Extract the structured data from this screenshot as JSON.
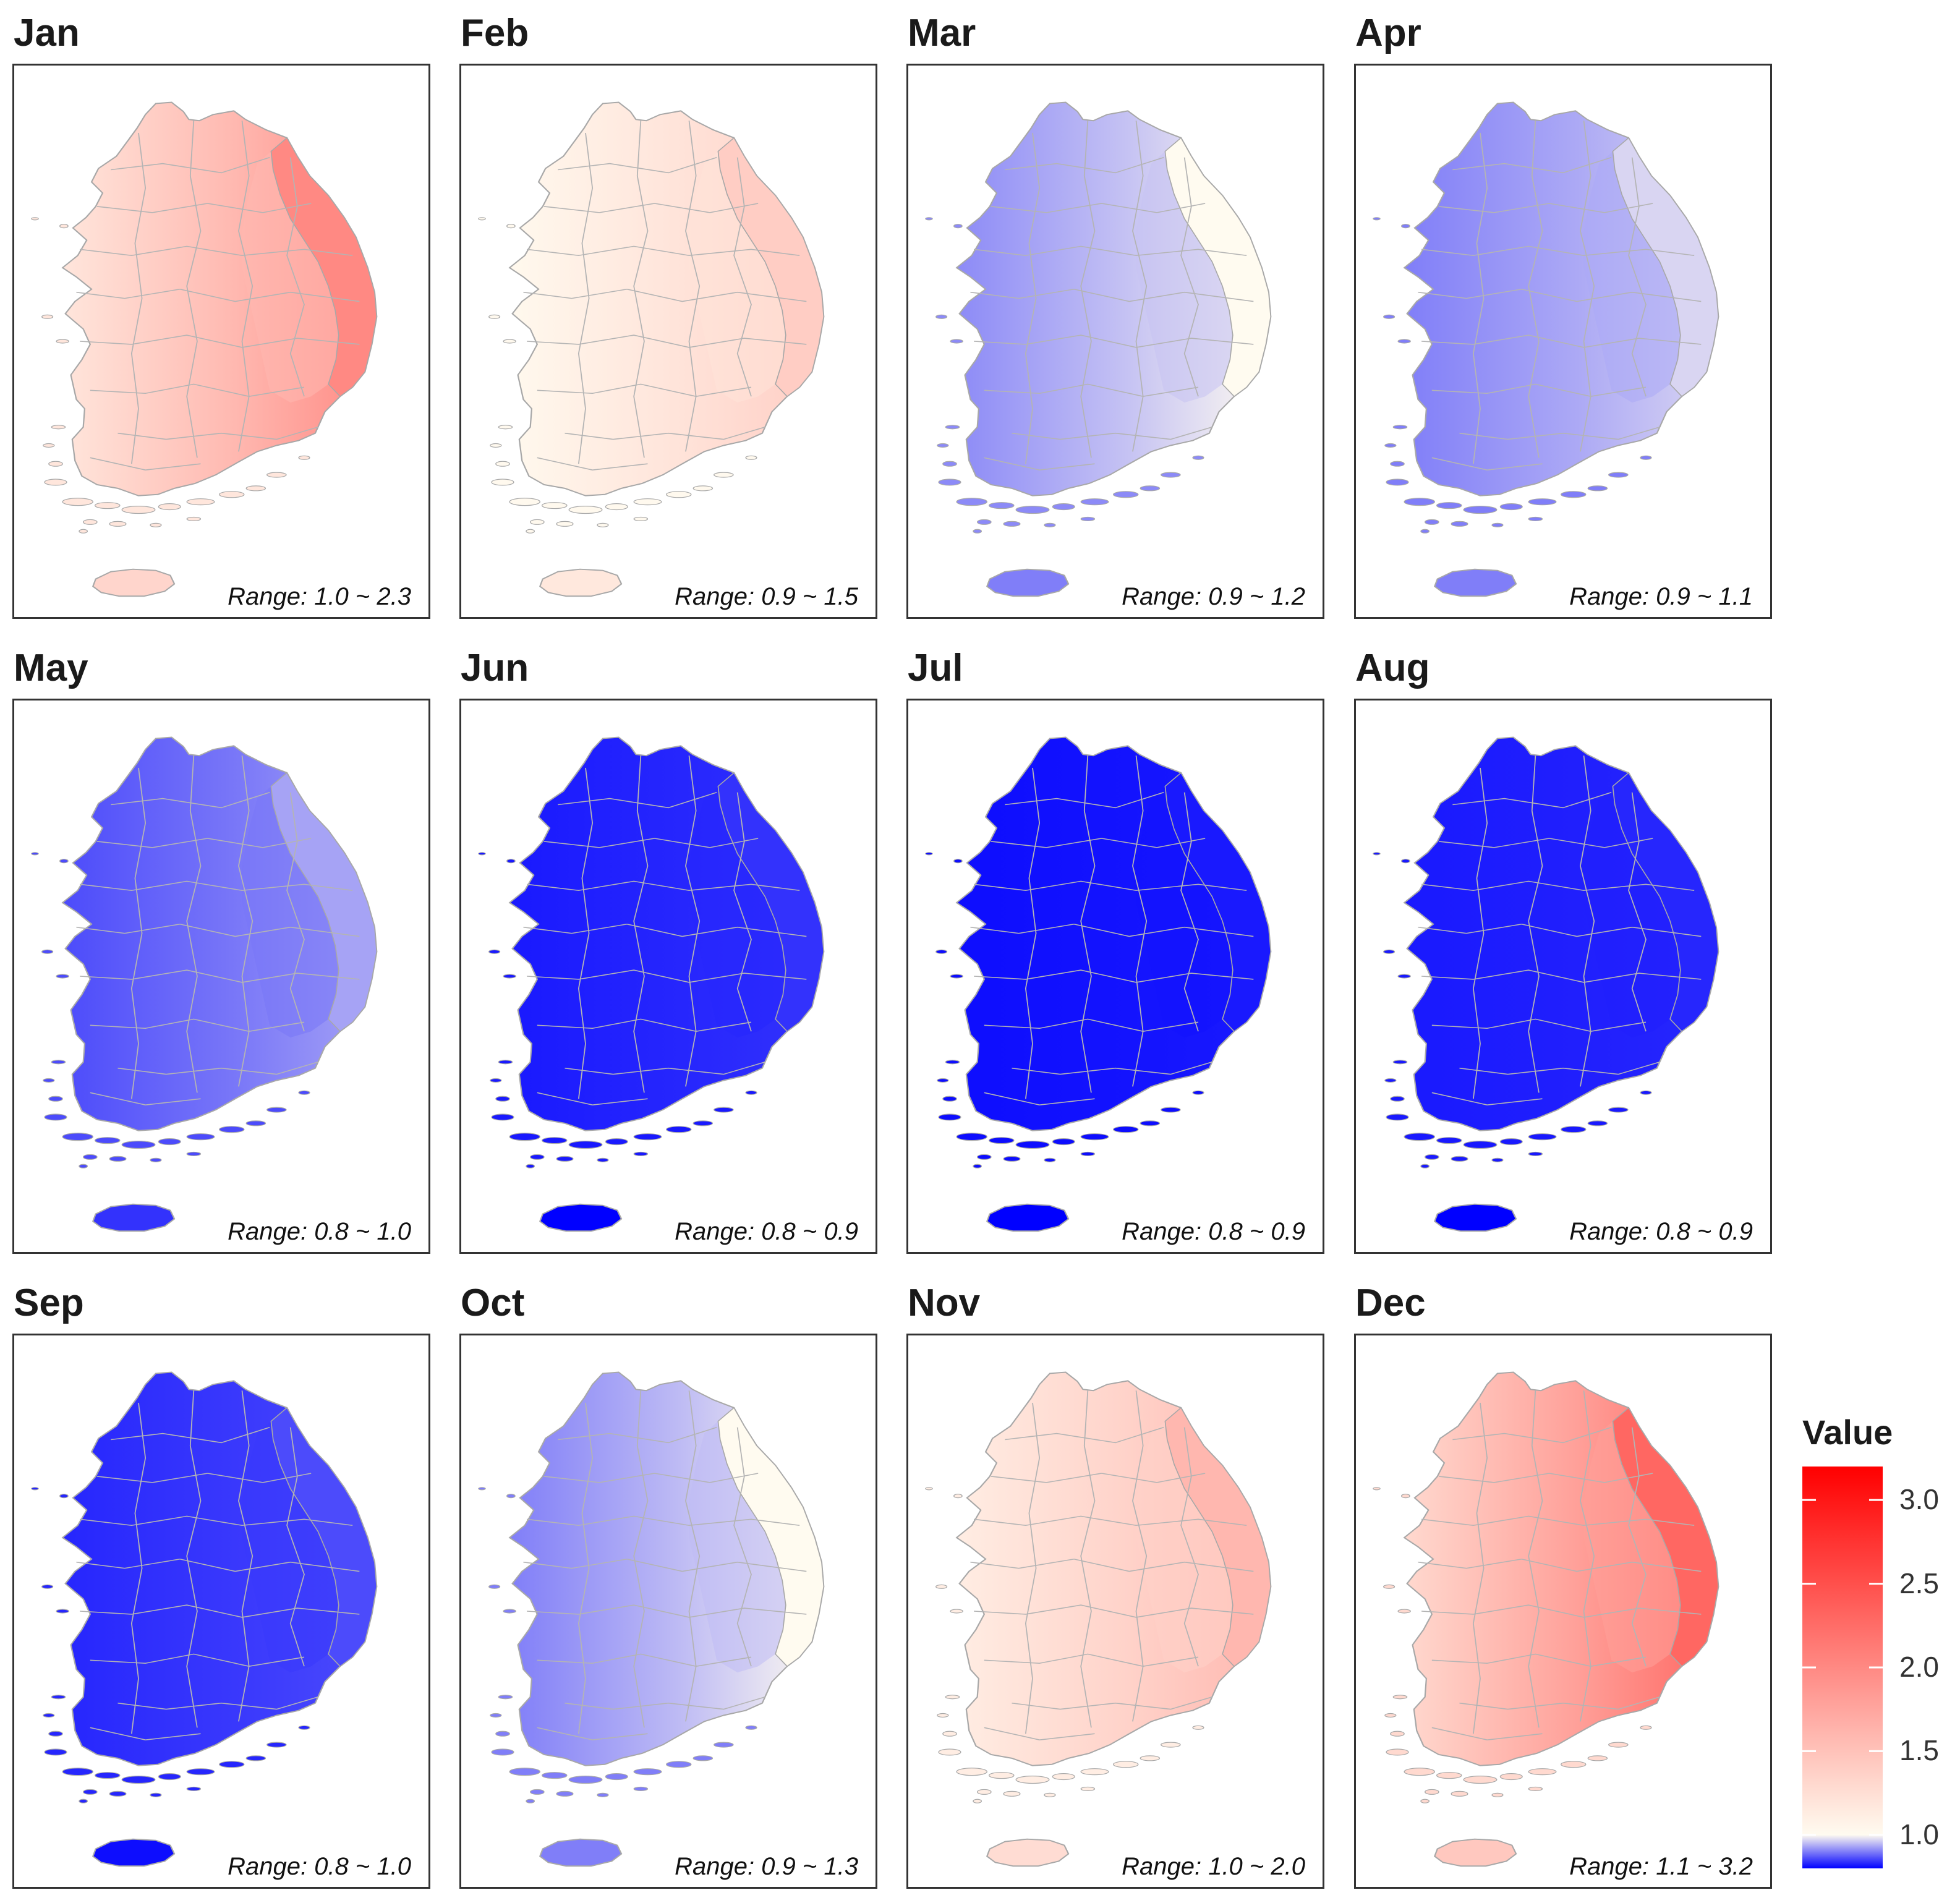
{
  "chart_data": {
    "type": "choropleth-map-grid",
    "legend": {
      "title": "Value",
      "ticks": [
        "3.0",
        "2.5",
        "2.0",
        "1.5",
        "1.0"
      ],
      "tick_values": [
        3.0,
        2.5,
        2.0,
        1.5,
        1.0
      ],
      "min": 0.8,
      "max": 3.2,
      "colors": {
        "low": "#0000ff",
        "mid": "#fffbf0",
        "high": "#ff0000"
      }
    },
    "panels": [
      {
        "month": "Jan",
        "range_text": "Range: 1.0 ~ 2.3",
        "min": 1.0,
        "max": 2.3,
        "value_w": 1.18,
        "value_e": 2.0
      },
      {
        "month": "Feb",
        "range_text": "Range: 0.9 ~ 1.5",
        "min": 0.9,
        "max": 1.5,
        "value_w": 1.02,
        "value_e": 1.4
      },
      {
        "month": "Mar",
        "range_text": "Range: 0.9 ~ 1.2",
        "min": 0.9,
        "max": 1.2,
        "value_w": 0.91,
        "value_e": 1.0
      },
      {
        "month": "Apr",
        "range_text": "Range: 0.9 ~ 1.1",
        "min": 0.9,
        "max": 1.1,
        "value_w": 0.9,
        "value_e": 0.97
      },
      {
        "month": "May",
        "range_text": "Range: 0.8 ~ 1.0",
        "min": 0.8,
        "max": 1.0,
        "value_w": 0.86,
        "value_e": 0.93
      },
      {
        "month": "Jun",
        "range_text": "Range: 0.8 ~ 0.9",
        "min": 0.8,
        "max": 0.9,
        "value_w": 0.82,
        "value_e": 0.84
      },
      {
        "month": "Jul",
        "range_text": "Range: 0.8 ~ 0.9",
        "min": 0.8,
        "max": 0.9,
        "value_w": 0.81,
        "value_e": 0.82
      },
      {
        "month": "Aug",
        "range_text": "Range: 0.8 ~ 0.9",
        "min": 0.8,
        "max": 0.9,
        "value_w": 0.82,
        "value_e": 0.83
      },
      {
        "month": "Sep",
        "range_text": "Range: 0.8 ~ 1.0",
        "min": 0.8,
        "max": 1.0,
        "value_w": 0.83,
        "value_e": 0.86
      },
      {
        "month": "Oct",
        "range_text": "Range: 0.9 ~ 1.3",
        "min": 0.9,
        "max": 1.3,
        "value_w": 0.9,
        "value_e": 1.0
      },
      {
        "month": "Nov",
        "range_text": "Range: 1.0 ~ 2.0",
        "min": 1.0,
        "max": 2.0,
        "value_w": 1.12,
        "value_e": 1.6
      },
      {
        "month": "Dec",
        "range_text": "Range: 1.1 ~ 3.2",
        "min": 1.1,
        "max": 3.2,
        "value_w": 1.3,
        "value_e": 2.3
      }
    ]
  }
}
